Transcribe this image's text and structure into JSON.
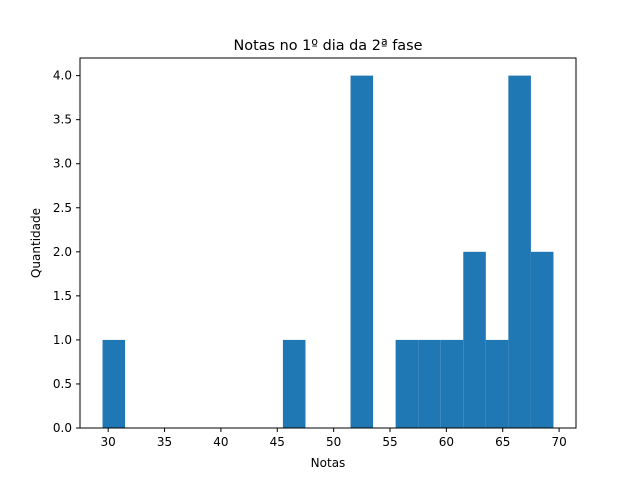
{
  "chart_data": {
    "type": "bar",
    "title": "Notas no 1º dia da 2ª fase",
    "xlabel": "Notas",
    "ylabel": "Quantidade",
    "xlim": [
      27.5,
      71.5
    ],
    "ylim": [
      0,
      4.2
    ],
    "xticks": [
      "30",
      "35",
      "40",
      "45",
      "50",
      "55",
      "60",
      "65",
      "70"
    ],
    "yticks": [
      "0.0",
      "0.5",
      "1.0",
      "1.5",
      "2.0",
      "2.5",
      "3.0",
      "3.5",
      "4.0"
    ],
    "bin_edges": [
      29.5,
      31.5,
      33.5,
      35.5,
      37.5,
      39.5,
      41.5,
      43.5,
      45.5,
      47.5,
      49.5,
      51.5,
      53.5,
      55.5,
      57.5,
      59.5,
      61.5,
      63.5,
      65.5,
      67.5,
      69.5
    ],
    "counts": [
      1,
      0,
      0,
      0,
      0,
      0,
      0,
      0,
      1,
      0,
      0,
      4,
      0,
      1,
      1,
      1,
      2,
      1,
      4,
      2
    ],
    "color": "#1f77b4",
    "grid": false,
    "legend": "none"
  }
}
